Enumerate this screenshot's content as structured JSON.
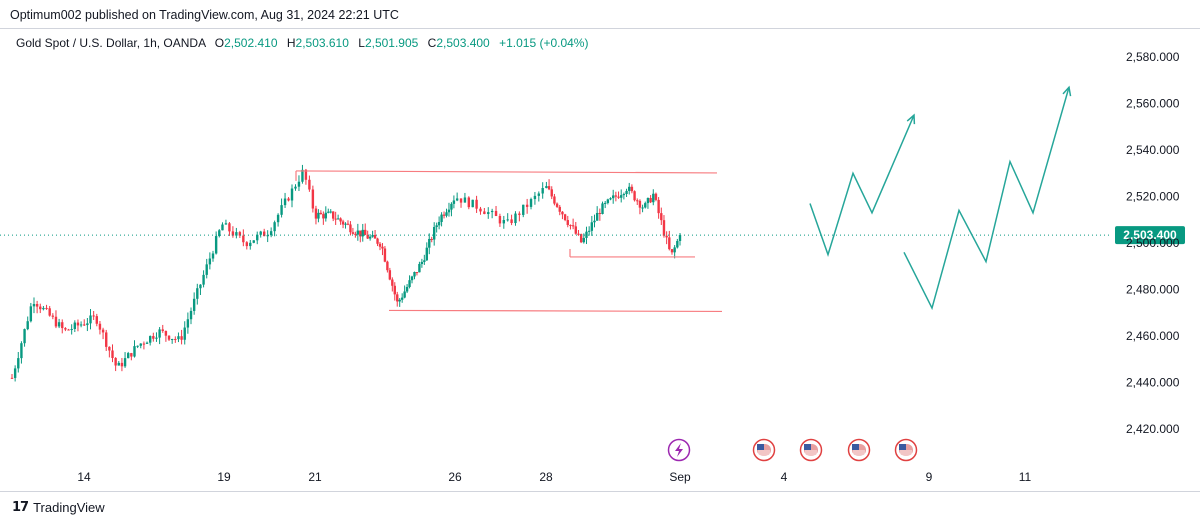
{
  "publish_line": "Optimum002 published on TradingView.com, Aug 31, 2024 22:21 UTC",
  "legend": {
    "symbol": "Gold Spot / U.S. Dollar, 1h, OANDA",
    "o_label": "O",
    "o_value": "2,502.410",
    "h_label": "H",
    "h_value": "2,503.610",
    "l_label": "L",
    "l_value": "2,501.905",
    "c_label": "C",
    "c_value": "2,503.400",
    "change": "+1.015 (+0.04%)"
  },
  "brand": {
    "logo_text": "17",
    "name": "TradingView"
  },
  "colors": {
    "up": "#089981",
    "down": "#f23645",
    "box": "#f77c80",
    "projection": "#26a69a",
    "axis_text": "#131722",
    "price_tag": "#089981",
    "event_us": "#e04040",
    "event_lightning": "#9c27b0"
  },
  "chart_data": {
    "type": "candlestick",
    "symbol": "XAUUSD",
    "timeframe": "1h",
    "x_ticks": [
      "14",
      "19",
      "21",
      "26",
      "28",
      "Sep",
      "4",
      "9",
      "11"
    ],
    "y_ticks": [
      "2,580.000",
      "2,560.000",
      "2,540.000",
      "2,520.000",
      "2,500.000",
      "2,480.000",
      "2,460.000",
      "2,440.000",
      "2,420.000"
    ],
    "ylim": [
      2410,
      2590
    ],
    "last_price": 2503.4,
    "last_price_label": "2,503.400",
    "price_path_approx": [
      {
        "label": "14",
        "t": 0,
        "price": 2442
      },
      {
        "t": 2,
        "price": 2476
      },
      {
        "t": 5,
        "price": 2462
      },
      {
        "t": 8,
        "price": 2468
      },
      {
        "t": 10,
        "price": 2446
      },
      {
        "t": 12,
        "price": 2456
      },
      {
        "t": 14,
        "price": 2462
      },
      {
        "t": 16,
        "price": 2458
      },
      {
        "label": "19",
        "t": 20,
        "price": 2508
      },
      {
        "t": 22,
        "price": 2500
      },
      {
        "t": 24,
        "price": 2505
      },
      {
        "t": 27,
        "price": 2531
      },
      {
        "label": "21",
        "t": 28,
        "price": 2512
      },
      {
        "t": 30,
        "price": 2512
      },
      {
        "t": 33,
        "price": 2505
      },
      {
        "t": 36,
        "price": 2500
      },
      {
        "t": 38,
        "price": 2474
      },
      {
        "t": 41,
        "price": 2492
      },
      {
        "t": 43,
        "price": 2510
      },
      {
        "label": "26",
        "t": 45,
        "price": 2520
      },
      {
        "t": 47,
        "price": 2515
      },
      {
        "t": 49,
        "price": 2508
      },
      {
        "label": "28",
        "t": 52,
        "price": 2524
      },
      {
        "t": 54,
        "price": 2512
      },
      {
        "t": 56,
        "price": 2500
      },
      {
        "t": 58,
        "price": 2514
      },
      {
        "t": 61,
        "price": 2524
      },
      {
        "t": 63,
        "price": 2515
      },
      {
        "t": 64,
        "price": 2521
      },
      {
        "t": 66,
        "price": 2494
      },
      {
        "label": "Sep",
        "t": 67,
        "price": 2503.4
      }
    ],
    "annotations": {
      "range_box_top": 2531,
      "range_box_bottom": 2471,
      "inner_support": 2494,
      "projection_1": [
        2517,
        2495,
        2530,
        2513,
        2555
      ],
      "projection_2": [
        2496,
        2472,
        2514,
        2492,
        2535,
        2513,
        2567
      ],
      "events": [
        "lightning",
        "us",
        "us",
        "us",
        "us"
      ]
    }
  }
}
